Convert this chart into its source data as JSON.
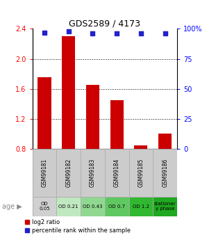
{
  "title": "GDS2589 / 4173",
  "categories": [
    "GSM99181",
    "GSM99182",
    "GSM99183",
    "GSM99184",
    "GSM99185",
    "GSM99186"
  ],
  "bar_values": [
    1.75,
    2.3,
    1.65,
    1.45,
    0.85,
    1.0
  ],
  "percentile_values": [
    97,
    98,
    96,
    96,
    96,
    96
  ],
  "ylim_left": [
    0.8,
    2.4
  ],
  "ylim_right": [
    0,
    100
  ],
  "yticks_left": [
    0.8,
    1.2,
    1.6,
    2.0,
    2.4
  ],
  "yticks_right": [
    0,
    25,
    50,
    75,
    100
  ],
  "ytick_labels_right": [
    "0",
    "25",
    "50",
    "75",
    "100%"
  ],
  "bar_color": "#cc0000",
  "dot_color": "#2222cc",
  "bar_width": 0.55,
  "age_labels": [
    "OD\n0.05",
    "OD 0.21",
    "OD 0.43",
    "OD 0.7",
    "OD 1.2",
    "stationar\ny phase"
  ],
  "age_colors": [
    "#d0d0d0",
    "#c0e8c0",
    "#90d890",
    "#60c860",
    "#30b830",
    "#20a820"
  ],
  "sample_box_color": "#cccccc",
  "legend_bar_label": "log2 ratio",
  "legend_dot_label": "percentile rank within the sample",
  "grid_ticks": [
    1.2,
    1.6,
    2.0
  ],
  "age_arrow_color": "#888888"
}
